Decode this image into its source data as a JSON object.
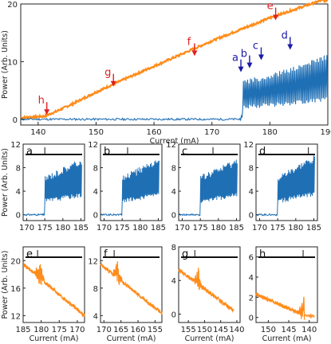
{
  "chart_data": [
    {
      "id": "main",
      "type": "line",
      "xlabel": "Current (mA)",
      "ylabel": "Power (Arb. Units)",
      "xlim": [
        137,
        190
      ],
      "ylim": [
        -1,
        20
      ],
      "xticks": [
        "140",
        "150",
        "160",
        "170",
        "180",
        "190"
      ],
      "yticks": [
        "0",
        "10",
        "20"
      ],
      "grid": false,
      "series": [
        {
          "color": "#ff8c1a",
          "x": [
            137,
            141,
            143,
            146,
            150,
            155,
            160,
            165,
            170,
            175,
            180,
            185,
            190
          ],
          "y": [
            0.3,
            0.5,
            1.3,
            2.7,
            4.7,
            7.0,
            9.2,
            11.4,
            13.6,
            15.6,
            17.6,
            19.3,
            21.0
          ]
        },
        {
          "color": "#1f6fb5",
          "x": [
            137,
            150,
            160,
            170,
            174.6,
            175.0,
            175.3,
            180,
            185,
            190
          ],
          "y": [
            0.0,
            0.0,
            0.0,
            0.0,
            0.0,
            3.5,
            6.0,
            7.0,
            8.5,
            10.5
          ]
        }
      ],
      "annotations": [
        {
          "label": "a",
          "x": 175.0,
          "y": 8.3,
          "color": "#1a1aa6"
        },
        {
          "label": "b",
          "x": 176.5,
          "y": 9.0,
          "color": "#1a1aa6"
        },
        {
          "label": "c",
          "x": 178.5,
          "y": 10.4,
          "color": "#1a1aa6"
        },
        {
          "label": "d",
          "x": 183.5,
          "y": 12.2,
          "color": "#1a1aa6"
        },
        {
          "label": "e",
          "x": 181.0,
          "y": 17.3,
          "color": "#e02020"
        },
        {
          "label": "f",
          "x": 167.0,
          "y": 11.1,
          "color": "#e02020"
        },
        {
          "label": "g",
          "x": 153.0,
          "y": 5.8,
          "color": "#e02020"
        },
        {
          "label": "h",
          "x": 141.5,
          "y": 0.9,
          "color": "#e02020"
        }
      ]
    },
    {
      "id": "panels_blue",
      "type": "line",
      "ylabel": "Power (Arb. Units)",
      "xlim": [
        169,
        186
      ],
      "ylim": [
        -1,
        12
      ],
      "xticks": [
        "170",
        "175",
        "180",
        "185"
      ],
      "yticks": [
        "0",
        "4",
        "8",
        "12"
      ],
      "panels": [
        {
          "label": "a",
          "marker_x": 175.0,
          "onset": 175.0,
          "end_y": 8.5
        },
        {
          "label": "b",
          "marker_x": 176.5,
          "onset": 175.0,
          "end_y": 8.5
        },
        {
          "label": "c",
          "marker_x": 178.5,
          "onset": 175.0,
          "end_y": 8.5
        },
        {
          "label": "d",
          "marker_x": 183.5,
          "onset": 175.0,
          "end_y": 9.0
        }
      ]
    },
    {
      "id": "panels_orange",
      "type": "line",
      "xlabel": "Current (mA)",
      "ylabel": "Power (Arb. Units)",
      "panels": [
        {
          "label": "e",
          "xlim": [
            185,
            168
          ],
          "xticks": [
            "185",
            "180",
            "175",
            "170"
          ],
          "ylim": [
            11,
            22
          ],
          "yticks": [
            "12",
            "16",
            "20"
          ],
          "start": [
            185,
            19.5
          ],
          "end": [
            168,
            12.0
          ],
          "marker_x": 181.0,
          "spike_x": 180.5
        },
        {
          "label": "f",
          "xlim": [
            171,
            153
          ],
          "xticks": [
            "170",
            "165",
            "160",
            "155"
          ],
          "ylim": [
            3,
            14
          ],
          "yticks": [
            "4",
            "8",
            "12"
          ],
          "start": [
            171,
            11.5
          ],
          "end": [
            153,
            4.3
          ],
          "marker_x": 167.0,
          "spike_x": 166.0
        },
        {
          "label": "g",
          "xlim": [
            158,
            139
          ],
          "xticks": [
            "155",
            "150",
            "145",
            "140"
          ],
          "ylim": [
            -1,
            8
          ],
          "yticks": [
            "0",
            "4",
            "8"
          ],
          "start": [
            158,
            5.3
          ],
          "end": [
            141,
            0.4
          ],
          "marker_x": 153.0,
          "spike_x": 152.0
        },
        {
          "label": "h",
          "xlim": [
            153,
            138
          ],
          "xticks": [
            "150",
            "145",
            "140"
          ],
          "ylim": [
            -0.5,
            7
          ],
          "yticks": [
            "0",
            "2",
            "4",
            "6"
          ],
          "start": [
            153,
            2.3
          ],
          "end": [
            141.2,
            0.2
          ],
          "marker_x": 141.5,
          "spike_x": 141.3
        }
      ]
    }
  ]
}
